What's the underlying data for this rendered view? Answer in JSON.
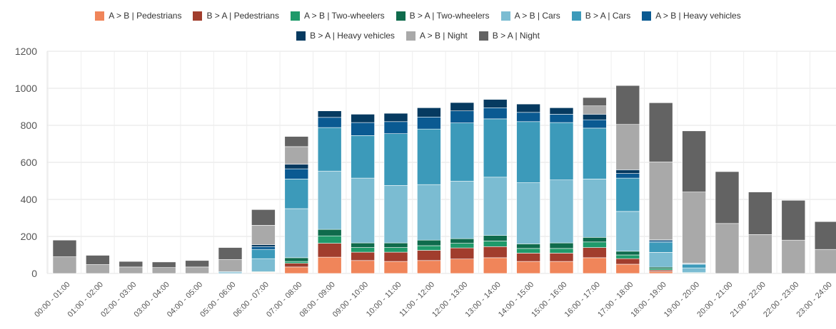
{
  "chart_data": {
    "type": "bar",
    "stacked": true,
    "categories": [
      "00:00 - 01:00",
      "01:00 - 02:00",
      "02:00 - 03:00",
      "03:00 - 04:00",
      "04:00 - 05:00",
      "05:00 - 06:00",
      "06:00 - 07:00",
      "07:00 - 08:00",
      "08:00 - 09:00",
      "09:00 - 10:00",
      "10:00 - 11:00",
      "11:00 - 12:00",
      "12:00 - 13:00",
      "13:00 - 14:00",
      "14:00 - 15:00",
      "15:00 - 16:00",
      "16:00 - 17:00",
      "17:00 - 18:00",
      "18:00 - 19:00",
      "19:00 - 20:00",
      "20:00 - 21:00",
      "21:00 - 22:00",
      "22:00 - 23:00",
      "23:00 - 24:00"
    ],
    "ylim": [
      0,
      1200
    ],
    "yticks": [
      0,
      200,
      400,
      600,
      800,
      1000,
      1200
    ],
    "grid": true,
    "legend_position": "top",
    "series": [
      {
        "name": "A > B | Pedestrians",
        "color": "#f0855a",
        "values": [
          0,
          0,
          0,
          0,
          0,
          0,
          3,
          35,
          88,
          70,
          65,
          70,
          78,
          85,
          65,
          65,
          85,
          50,
          10,
          0,
          0,
          0,
          0,
          0
        ]
      },
      {
        "name": "B > A | Pedestrians",
        "color": "#a13d2d",
        "values": [
          0,
          0,
          0,
          0,
          0,
          0,
          2,
          20,
          75,
          45,
          50,
          55,
          60,
          60,
          45,
          45,
          55,
          30,
          8,
          0,
          0,
          0,
          0,
          0
        ]
      },
      {
        "name": "A > B | Two-wheelers",
        "color": "#1f9a6a",
        "values": [
          0,
          0,
          0,
          0,
          0,
          0,
          2,
          10,
          40,
          25,
          25,
          25,
          25,
          30,
          25,
          25,
          30,
          20,
          8,
          2,
          0,
          0,
          0,
          0
        ]
      },
      {
        "name": "B > A | Two-wheelers",
        "color": "#0f6b4c",
        "values": [
          0,
          0,
          0,
          0,
          0,
          0,
          3,
          20,
          35,
          25,
          25,
          30,
          25,
          30,
          25,
          30,
          25,
          20,
          8,
          3,
          0,
          0,
          0,
          0
        ]
      },
      {
        "name": "A > B | Cars",
        "color": "#7bbcd2",
        "values": [
          0,
          0,
          0,
          0,
          0,
          5,
          70,
          265,
          315,
          350,
          310,
          300,
          310,
          315,
          330,
          340,
          315,
          215,
          80,
          25,
          0,
          0,
          0,
          0
        ]
      },
      {
        "name": "B > A | Cars",
        "color": "#3c9aba",
        "values": [
          0,
          0,
          0,
          0,
          0,
          5,
          50,
          160,
          235,
          230,
          280,
          300,
          315,
          315,
          330,
          310,
          275,
          180,
          55,
          20,
          0,
          0,
          0,
          0
        ]
      },
      {
        "name": "A > B | Heavy vehicles",
        "color": "#0a5a92",
        "values": [
          0,
          0,
          0,
          0,
          0,
          0,
          15,
          55,
          55,
          70,
          65,
          65,
          65,
          60,
          50,
          45,
          45,
          25,
          8,
          3,
          0,
          0,
          0,
          0
        ]
      },
      {
        "name": "B > A | Heavy vehicles",
        "color": "#063a60",
        "values": [
          0,
          0,
          0,
          0,
          0,
          0,
          10,
          25,
          35,
          45,
          45,
          50,
          45,
          45,
          45,
          35,
          30,
          20,
          5,
          2,
          0,
          0,
          0,
          0
        ]
      },
      {
        "name": "A > B | Night",
        "color": "#a9a9a9",
        "values": [
          90,
          48,
          35,
          32,
          35,
          65,
          105,
          95,
          0,
          0,
          0,
          0,
          0,
          0,
          0,
          0,
          45,
          245,
          420,
          385,
          270,
          210,
          180,
          130
        ]
      },
      {
        "name": "B > A | Night",
        "color": "#636363",
        "values": [
          90,
          50,
          30,
          30,
          35,
          65,
          85,
          55,
          0,
          0,
          0,
          0,
          0,
          0,
          0,
          0,
          45,
          210,
          320,
          330,
          280,
          230,
          215,
          150
        ]
      }
    ]
  }
}
